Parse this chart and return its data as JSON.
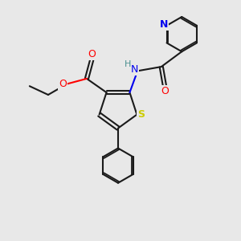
{
  "background_color": "#e8e8e8",
  "bond_color": "#1a1a1a",
  "atom_colors": {
    "O": "#ff0000",
    "N": "#0000ee",
    "S": "#cccc00",
    "H": "#4a9090",
    "C": "#1a1a1a"
  },
  "figsize": [
    3.0,
    3.0
  ],
  "dpi": 100
}
